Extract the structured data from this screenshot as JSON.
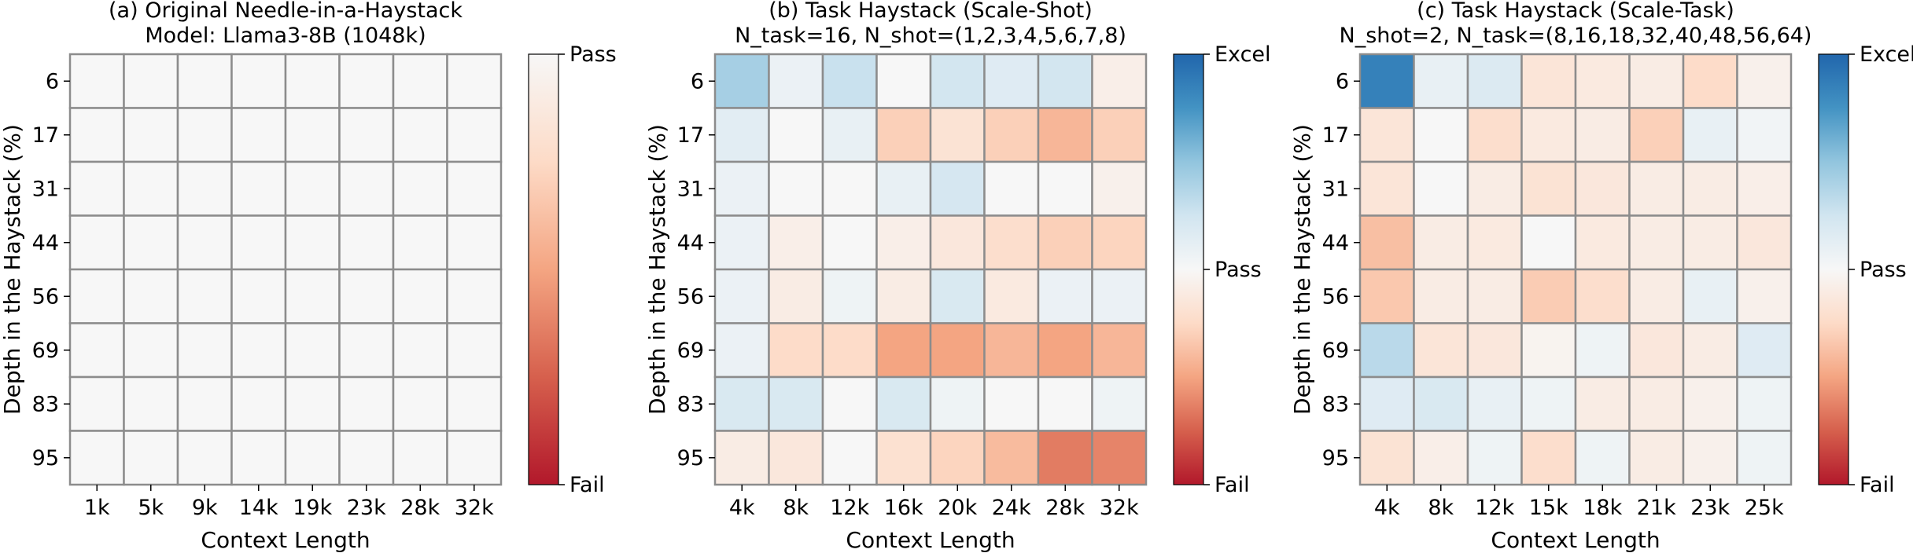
{
  "chart_data": [
    {
      "type": "heatmap",
      "title": "(a) Original Needle-in-a-Haystack",
      "subtitle": "Model: Llama3-8B (1048k)",
      "xlabel": "Context Length",
      "ylabel": "Depth in the Haystack (%)",
      "x": [
        "1k",
        "5k",
        "9k",
        "14k",
        "19k",
        "23k",
        "28k",
        "32k"
      ],
      "y": [
        "6",
        "17",
        "31",
        "44",
        "56",
        "69",
        "83",
        "95"
      ],
      "colorbar": {
        "labels": [
          "Pass",
          "Fail"
        ],
        "range": [
          -1,
          0
        ],
        "colormap": "RdBu"
      },
      "values": [
        [
          0,
          0,
          0,
          0,
          0,
          0,
          0,
          0
        ],
        [
          0,
          0,
          0,
          0,
          0,
          0,
          0,
          0
        ],
        [
          0,
          0,
          0,
          0,
          0,
          0,
          0,
          0
        ],
        [
          0,
          0,
          0,
          0,
          0,
          0,
          0,
          0
        ],
        [
          0,
          0,
          0,
          0,
          0,
          0,
          0,
          0
        ],
        [
          0,
          0,
          0,
          0,
          0,
          0,
          0,
          0
        ],
        [
          0,
          0,
          0,
          0,
          0,
          0,
          0,
          0
        ],
        [
          0,
          0,
          0,
          0,
          0,
          0,
          0,
          0
        ]
      ]
    },
    {
      "type": "heatmap",
      "title": "(b) Task Haystack (Scale-Shot)",
      "subtitle": "N_task=16, N_shot=(1,2,3,4,5,6,7,8)",
      "xlabel": "Context Length",
      "ylabel": "Depth in the Haystack (%)",
      "x": [
        "4k",
        "8k",
        "12k",
        "16k",
        "20k",
        "24k",
        "28k",
        "32k"
      ],
      "y": [
        "6",
        "17",
        "31",
        "44",
        "56",
        "69",
        "83",
        "95"
      ],
      "colorbar": {
        "labels": [
          "Excel",
          "Pass",
          "Fail"
        ],
        "range": [
          -1,
          1
        ],
        "colormap": "RdBu"
      },
      "values": [
        [
          0.42,
          0.08,
          0.28,
          0.0,
          0.24,
          0.16,
          0.24,
          -0.08
        ],
        [
          0.14,
          0.0,
          0.1,
          -0.3,
          -0.18,
          -0.3,
          -0.42,
          -0.3
        ],
        [
          0.08,
          0.0,
          0.0,
          0.1,
          0.22,
          0.0,
          0.0,
          -0.06
        ],
        [
          0.08,
          -0.08,
          0.0,
          -0.08,
          -0.14,
          -0.22,
          -0.3,
          -0.28
        ],
        [
          0.08,
          -0.1,
          0.06,
          -0.1,
          0.2,
          -0.12,
          0.08,
          0.08
        ],
        [
          0.08,
          -0.24,
          -0.24,
          -0.5,
          -0.5,
          -0.42,
          -0.5,
          -0.42
        ],
        [
          0.2,
          0.2,
          0.0,
          0.2,
          0.06,
          0.0,
          0.0,
          0.06
        ],
        [
          -0.1,
          -0.14,
          0.0,
          -0.2,
          -0.28,
          -0.4,
          -0.65,
          -0.62
        ]
      ]
    },
    {
      "type": "heatmap",
      "title": "(c) Task Haystack (Scale-Task)",
      "subtitle": "N_shot=2, N_task=(8,16,18,32,40,48,56,64)",
      "xlabel": "Context Length",
      "ylabel": "Depth in the Haystack (%)",
      "x": [
        "4k",
        "8k",
        "12k",
        "15k",
        "18k",
        "21k",
        "23k",
        "25k"
      ],
      "y": [
        "6",
        "17",
        "31",
        "44",
        "56",
        "69",
        "83",
        "95"
      ],
      "colorbar": {
        "labels": [
          "Excel",
          "Pass",
          "Fail"
        ],
        "range": [
          -1,
          1
        ],
        "colormap": "RdBu"
      },
      "values": [
        [
          0.85,
          0.1,
          0.18,
          -0.16,
          -0.12,
          -0.1,
          -0.24,
          -0.06
        ],
        [
          -0.16,
          0.0,
          -0.22,
          -0.12,
          -0.1,
          -0.3,
          0.1,
          0.04
        ],
        [
          -0.16,
          0.0,
          -0.1,
          -0.18,
          -0.14,
          -0.1,
          -0.1,
          -0.08
        ],
        [
          -0.38,
          -0.1,
          -0.12,
          0.0,
          -0.12,
          -0.1,
          -0.1,
          -0.14
        ],
        [
          -0.34,
          -0.1,
          -0.1,
          -0.32,
          -0.22,
          -0.1,
          0.1,
          -0.06
        ],
        [
          0.34,
          -0.16,
          -0.14,
          -0.04,
          0.06,
          -0.14,
          -0.1,
          0.16
        ],
        [
          0.16,
          0.2,
          0.1,
          0.06,
          -0.1,
          -0.1,
          -0.06,
          0.06
        ],
        [
          -0.18,
          -0.08,
          0.06,
          -0.22,
          0.06,
          -0.1,
          -0.06,
          0.06
        ]
      ]
    }
  ]
}
